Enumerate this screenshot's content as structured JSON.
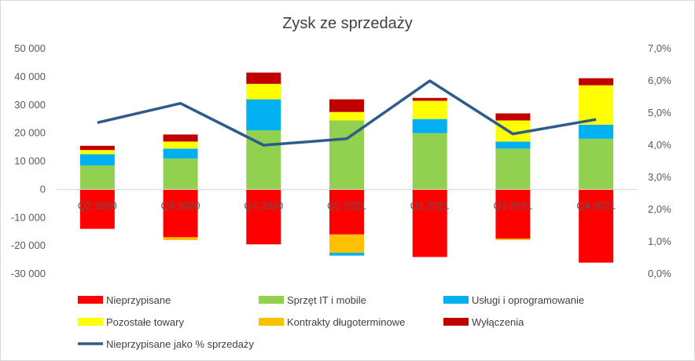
{
  "chart_data": {
    "type": "bar",
    "title": "Zysk ze sprzedaży",
    "categories": [
      "Q2 2020",
      "Q3 2020",
      "Q4 2020",
      "Q1 2021",
      "Q2 2021",
      "Q3 2021",
      "Q4 2021"
    ],
    "ylim": [
      -30000,
      50000
    ],
    "y2lim": [
      0,
      0.07
    ],
    "y_ticks": [
      "-30 000",
      "-20 000",
      "-10 000",
      "0",
      "10 000",
      "20 000",
      "30 000",
      "40 000",
      "50 000"
    ],
    "y2_ticks": [
      "0,0%",
      "1,0%",
      "2,0%",
      "3,0%",
      "4,0%",
      "5,0%",
      "6,0%",
      "7,0%"
    ],
    "legend_position": "bottom",
    "grid": false,
    "series": [
      {
        "name": "Nieprzypisane",
        "color": "#ff0000",
        "values": [
          -14000,
          -17000,
          -19500,
          -16000,
          -24000,
          -17500,
          -26000
        ]
      },
      {
        "name": "Sprzęt IT i mobile",
        "color": "#92d050",
        "values": [
          8500,
          11000,
          21000,
          24500,
          20000,
          14500,
          18000
        ]
      },
      {
        "name": "Usługi i oprogramowanie",
        "color": "#00b0f0",
        "values": [
          4000,
          3500,
          11000,
          0,
          5000,
          2500,
          5000
        ]
      },
      {
        "name": "Pozostałe towary",
        "color": "#ffff00",
        "values": [
          1500,
          2500,
          5500,
          3000,
          6500,
          7500,
          14000
        ]
      },
      {
        "name": "Kontrakty długoterminowe",
        "color": "#ffc000",
        "values": [
          0,
          -1000,
          0,
          -6500,
          0,
          -500,
          0
        ]
      },
      {
        "name": "Wyłączenia",
        "color": "#c00000",
        "values": [
          1500,
          2500,
          4000,
          4500,
          1000,
          2500,
          2500
        ]
      }
    ],
    "line_series": {
      "name": "Nieprzypisane jako % sprzedaży",
      "color": "#2e5c8a",
      "values": [
        0.047,
        0.053,
        0.04,
        0.042,
        0.06,
        0.0435,
        0.048
      ]
    },
    "extra_negative": [
      {
        "series": "Usługi i oprogramowanie",
        "category": "Q1 2021",
        "value": -1000
      }
    ]
  }
}
